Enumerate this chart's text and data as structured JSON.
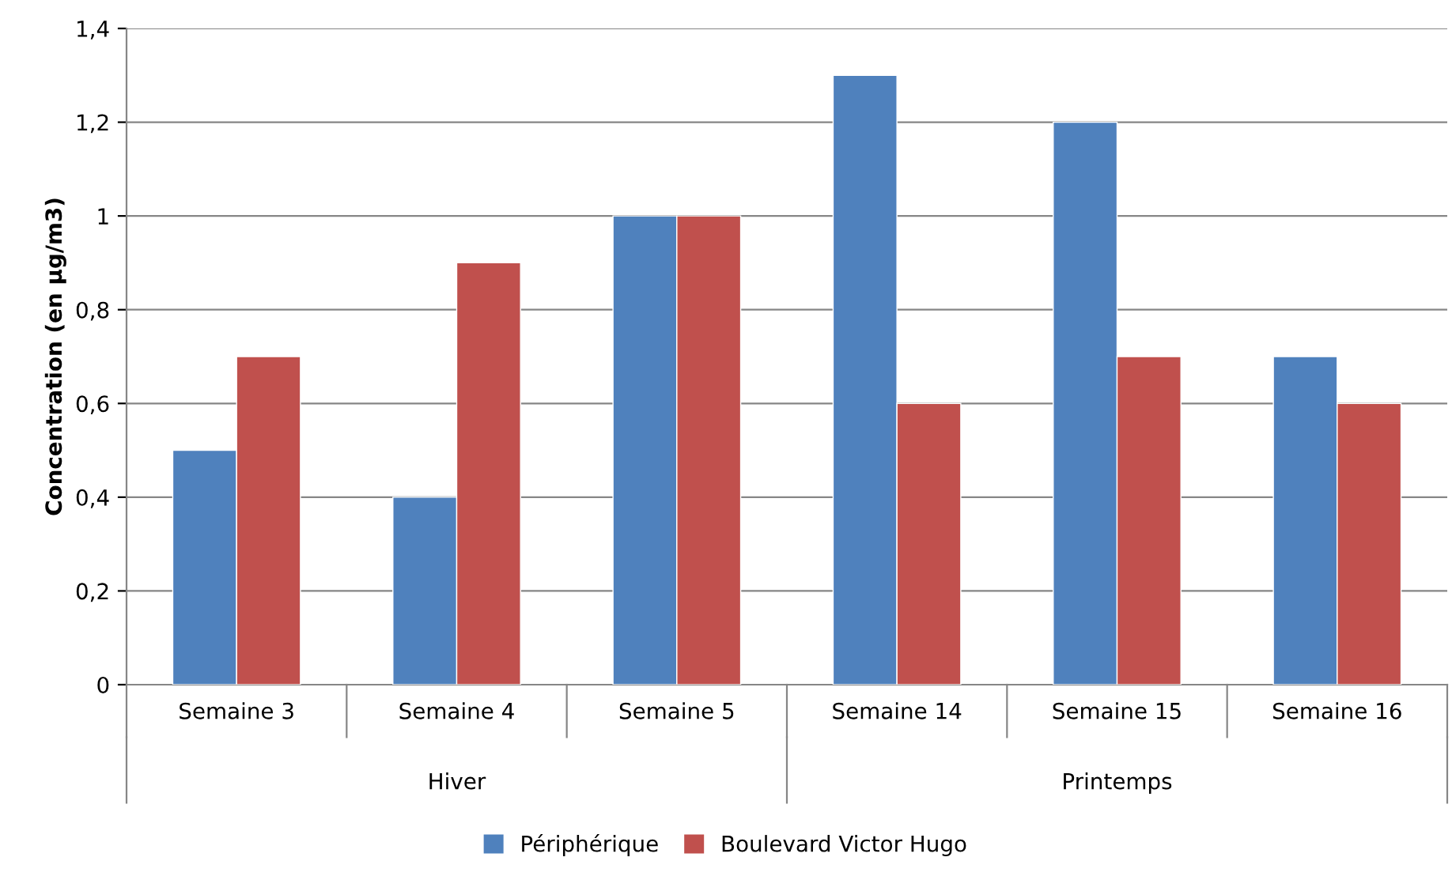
{
  "chart_data": {
    "type": "bar",
    "ylabel": "Concentration (en µg/m3)",
    "categories": [
      "Semaine 3",
      "Semaine 4",
      "Semaine 5",
      "Semaine 14",
      "Semaine 15",
      "Semaine 16"
    ],
    "series": [
      {
        "name": "Périphérique",
        "color": "#4f81bd",
        "values": [
          0.5,
          0.4,
          1.0,
          1.3,
          1.2,
          0.7
        ]
      },
      {
        "name": "Boulevard Victor Hugo",
        "color": "#c0504d",
        "values": [
          0.7,
          0.9,
          1.0,
          0.6,
          0.7,
          0.6
        ]
      }
    ],
    "annotations": [
      "Hiver",
      "Printemps"
    ],
    "ylim": [
      0,
      1.4
    ],
    "yticks": [
      0,
      {
        "value": 0.2,
        "label": "0,2"
      },
      {
        "value": 0.4,
        "label": "0,4"
      },
      {
        "value": 0.6,
        "label": "0,6"
      },
      {
        "value": 0.8,
        "label": "0,8"
      },
      1,
      {
        "value": 1.2,
        "label": "1,2"
      },
      {
        "value": 1.4,
        "label": "1,4"
      }
    ],
    "grid": "y",
    "legend": "bottom"
  }
}
